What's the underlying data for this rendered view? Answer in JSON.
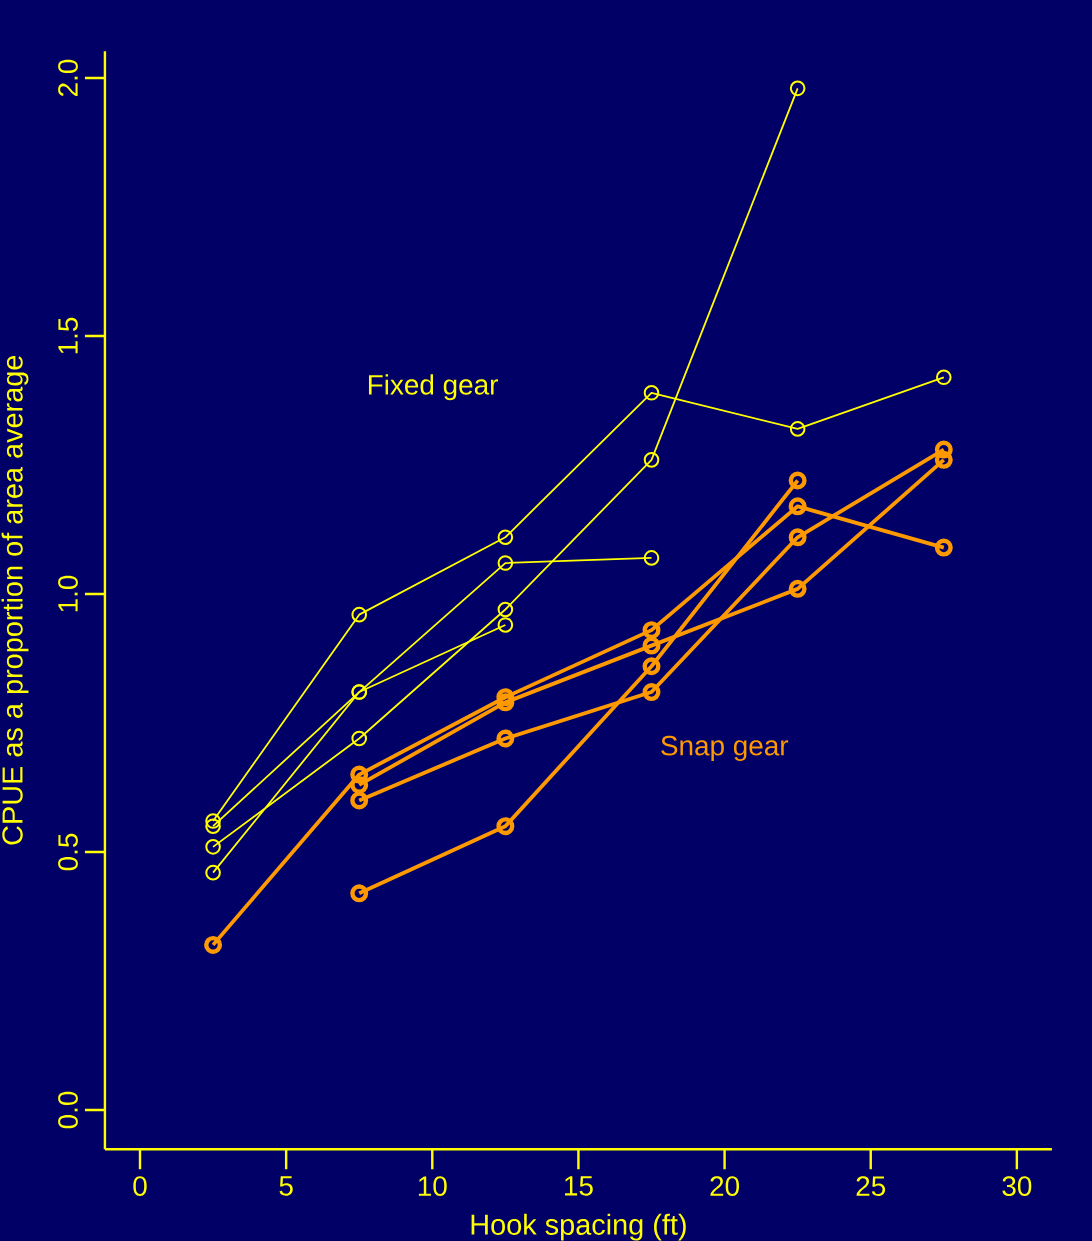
{
  "chart_data": {
    "type": "line",
    "xlabel": "Hook spacing (ft)",
    "ylabel": "CPUE as a proportion of area average",
    "x": [
      2.5,
      7.5,
      12.5,
      17.5,
      22.5,
      27.5
    ],
    "series": [
      {
        "color": "#ffff00",
        "values": [
          0.56,
          0.96,
          1.11,
          1.39,
          1.32,
          1.42
        ]
      },
      {
        "color": "#ffff00",
        "values": [
          0.55,
          0.81,
          1.06,
          1.07,
          null,
          null
        ]
      },
      {
        "color": "#ffff00",
        "values": [
          0.46,
          0.81,
          0.94,
          null,
          null,
          null
        ]
      },
      {
        "color": "#ffff00",
        "values": [
          0.51,
          0.72,
          0.97,
          1.26,
          1.98,
          null
        ]
      },
      {
        "color": "#ff9900",
        "values": [
          0.32,
          0.65,
          0.8,
          0.93,
          1.17,
          1.09
        ]
      },
      {
        "color": "#ff9900",
        "values": [
          null,
          0.63,
          0.79,
          0.9,
          1.01,
          1.26
        ]
      },
      {
        "color": "#ff9900",
        "values": [
          null,
          0.6,
          0.72,
          0.81,
          1.11,
          1.28
        ]
      },
      {
        "color": "#ff9900",
        "values": [
          null,
          0.42,
          0.55,
          0.86,
          1.22,
          null
        ]
      }
    ],
    "xlim": [
      -1.2,
      31.2
    ],
    "ylim": [
      -0.076,
      2.052
    ],
    "xticks": [
      0,
      5,
      10,
      15,
      20,
      25,
      30
    ],
    "yticks": [
      {
        "value": 0,
        "label": "0.0"
      },
      {
        "value": 0.5,
        "label": "0.5"
      },
      {
        "value": 1,
        "label": "1.0"
      },
      {
        "value": 1.5,
        "label": "1.5"
      },
      {
        "value": 2,
        "label": "2.0"
      }
    ],
    "marker": "circle",
    "annotations": [
      "Fixed gear",
      "Snap gear"
    ]
  }
}
